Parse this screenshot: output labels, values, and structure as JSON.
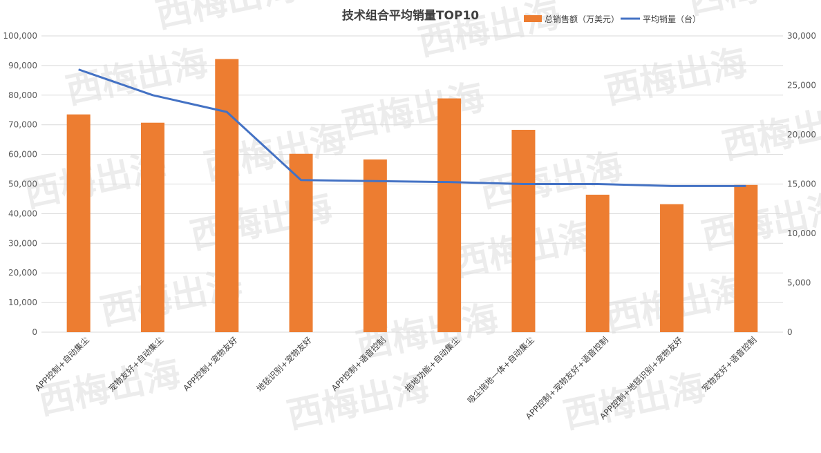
{
  "chart_data": {
    "type": "bar",
    "title": "技术组合平均销量TOP10",
    "categories": [
      "APP控制+自动集尘",
      "宠物友好+自动集尘",
      "APP控制+宠物友好",
      "地毯识别+宠物友好",
      "APP控制+语音控制",
      "拖地功能+自动集尘",
      "吸尘拖地一体+自动集尘",
      "APP控制+宠物友好+语音控制",
      "APP控制+地毯识别+宠物友好",
      "宠物友好+语音控制"
    ],
    "series": [
      {
        "name": "总销售额（万美元）",
        "type": "bar",
        "axis": "left",
        "color": "#ED7D31",
        "values": [
          73500,
          70700,
          92200,
          60200,
          58300,
          78900,
          68300,
          46400,
          43200,
          49700
        ]
      },
      {
        "name": "平均销量（台）",
        "type": "line",
        "axis": "right",
        "color": "#4472C4",
        "values": [
          26600,
          24000,
          22300,
          15400,
          15300,
          15200,
          15000,
          15000,
          14800,
          14800
        ]
      }
    ],
    "y_left": {
      "min": 0,
      "max": 100000,
      "step": 10000,
      "tick_labels": [
        "0",
        "10,000",
        "20,000",
        "30,000",
        "40,000",
        "50,000",
        "60,000",
        "70,000",
        "80,000",
        "90,000",
        "100,000"
      ]
    },
    "y_right": {
      "min": 0,
      "max": 30000,
      "step": 5000,
      "tick_labels": [
        "0",
        "5,000",
        "10,000",
        "15,000",
        "20,000",
        "25,000",
        "30,000"
      ]
    },
    "grid": true,
    "legend": "top-right"
  },
  "watermark": {
    "text": "西梅出海"
  }
}
